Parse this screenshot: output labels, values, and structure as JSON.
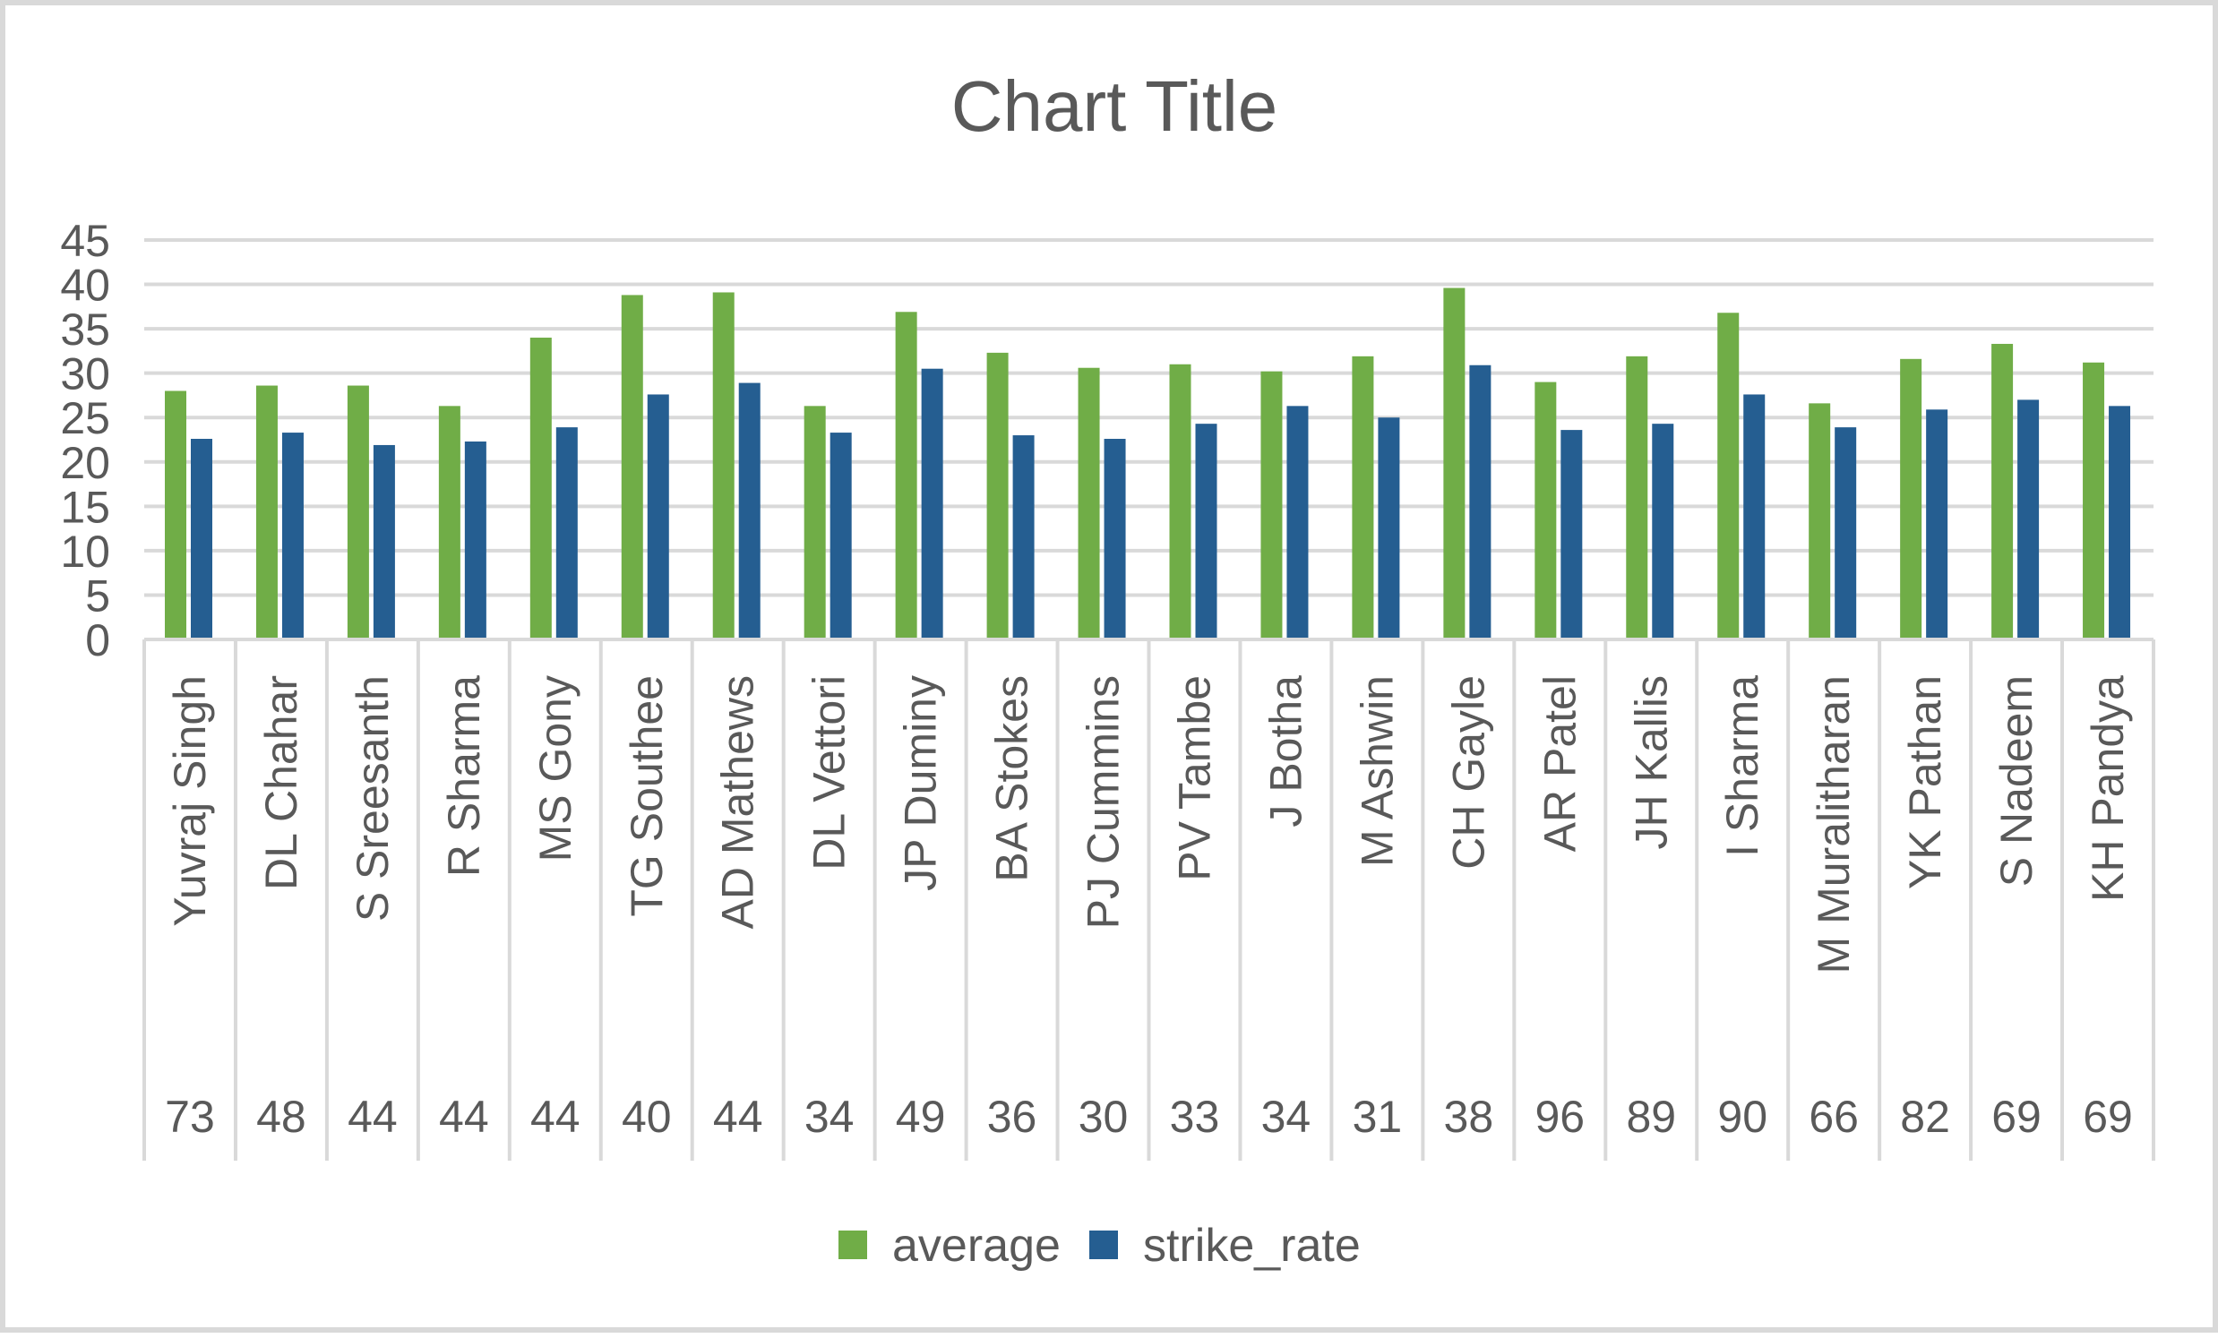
{
  "chart_data": {
    "type": "bar",
    "title": "Chart Title",
    "xlabel": "",
    "ylabel": "",
    "ylim": [
      0,
      45
    ],
    "ytick_step": 5,
    "grid": true,
    "legend_position": "bottom",
    "categories": [
      "Yuvraj Singh",
      "DL Chahar",
      "S Sreesanth",
      "R Sharma",
      "MS Gony",
      "TG Southee",
      "AD Mathews",
      "DL Vettori",
      "JP Duminy",
      "BA Stokes",
      "PJ Cummins",
      "PV Tambe",
      "J Botha",
      "M Ashwin",
      "CH Gayle",
      "AR Patel",
      "JH Kallis",
      "I Sharma",
      "M Muralitharan",
      "YK Pathan",
      "S Nadeem",
      "KH Pandya"
    ],
    "category_groups": [
      "73",
      "48",
      "44",
      "44",
      "44",
      "40",
      "44",
      "34",
      "49",
      "36",
      "30",
      "33",
      "34",
      "31",
      "38",
      "96",
      "89",
      "90",
      "66",
      "82",
      "69",
      "69"
    ],
    "series": [
      {
        "name": "average",
        "color": "#70ad47",
        "values": [
          28.0,
          28.6,
          28.6,
          26.3,
          34.0,
          38.8,
          39.1,
          26.3,
          36.9,
          32.3,
          30.6,
          31.0,
          30.2,
          31.9,
          39.6,
          29.0,
          31.9,
          36.8,
          26.6,
          31.6,
          33.3,
          31.2
        ]
      },
      {
        "name": "strike_rate",
        "color": "#255e91",
        "values": [
          22.6,
          23.3,
          21.9,
          22.3,
          23.9,
          27.6,
          28.9,
          23.3,
          30.5,
          23.0,
          22.6,
          24.3,
          26.3,
          25.0,
          30.9,
          23.6,
          24.3,
          27.6,
          23.9,
          25.9,
          27.0,
          26.3
        ]
      }
    ]
  }
}
